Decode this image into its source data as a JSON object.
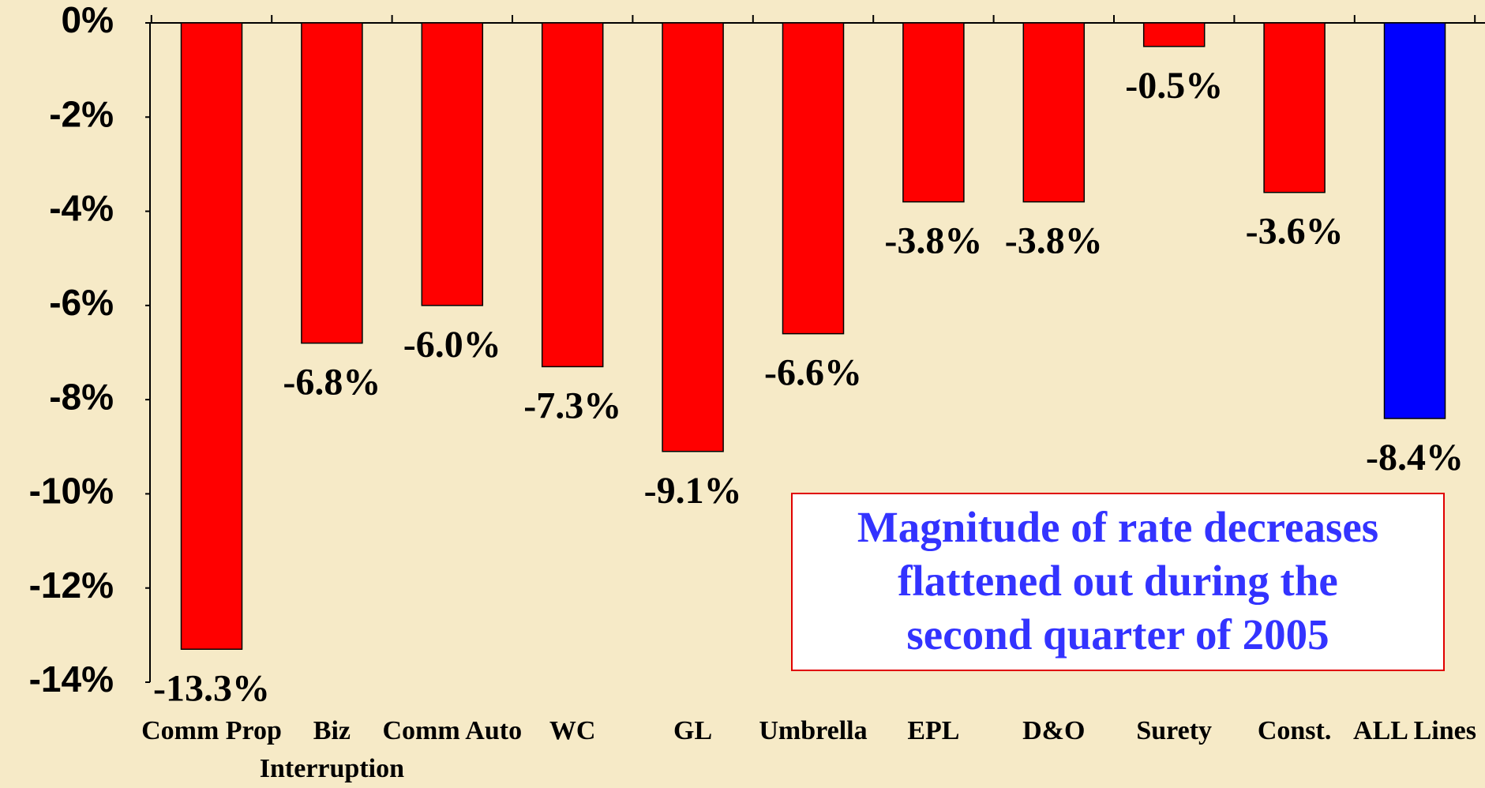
{
  "chart_data": {
    "type": "bar",
    "categories": [
      "Comm Prop",
      "Biz\nInterruption",
      "Comm Auto",
      "WC",
      "GL",
      "Umbrella",
      "EPL",
      "D&O",
      "Surety",
      "Const.",
      "ALL Lines"
    ],
    "values": [
      -13.3,
      -6.8,
      -6.0,
      -7.3,
      -9.1,
      -6.6,
      -3.8,
      -3.8,
      -0.5,
      -3.6,
      -8.4
    ],
    "value_labels": [
      "-13.3%",
      "-6.8%",
      "-6.0%",
      "-7.3%",
      "-9.1%",
      "-6.6%",
      "-3.8%",
      "-3.8%",
      "-0.5%",
      "-3.6%",
      "-8.4%"
    ],
    "colors": [
      "#ff0000",
      "#ff0000",
      "#ff0000",
      "#ff0000",
      "#ff0000",
      "#ff0000",
      "#ff0000",
      "#ff0000",
      "#ff0000",
      "#ff0000",
      "#0000ff"
    ],
    "ylim": [
      -14,
      0
    ],
    "yticks": [
      {
        "value": 0,
        "label": "0%"
      },
      {
        "value": -2,
        "label": "-2%"
      },
      {
        "value": -4,
        "label": "-4%"
      },
      {
        "value": -6,
        "label": "-6%"
      },
      {
        "value": -8,
        "label": "-8%"
      },
      {
        "value": -10,
        "label": "-10%"
      },
      {
        "value": -12,
        "label": "-12%"
      },
      {
        "value": -14,
        "label": "-14%"
      }
    ],
    "annotation": [
      "Magnitude of rate decreases",
      "flattened out during the",
      "second quarter of 2005"
    ]
  }
}
